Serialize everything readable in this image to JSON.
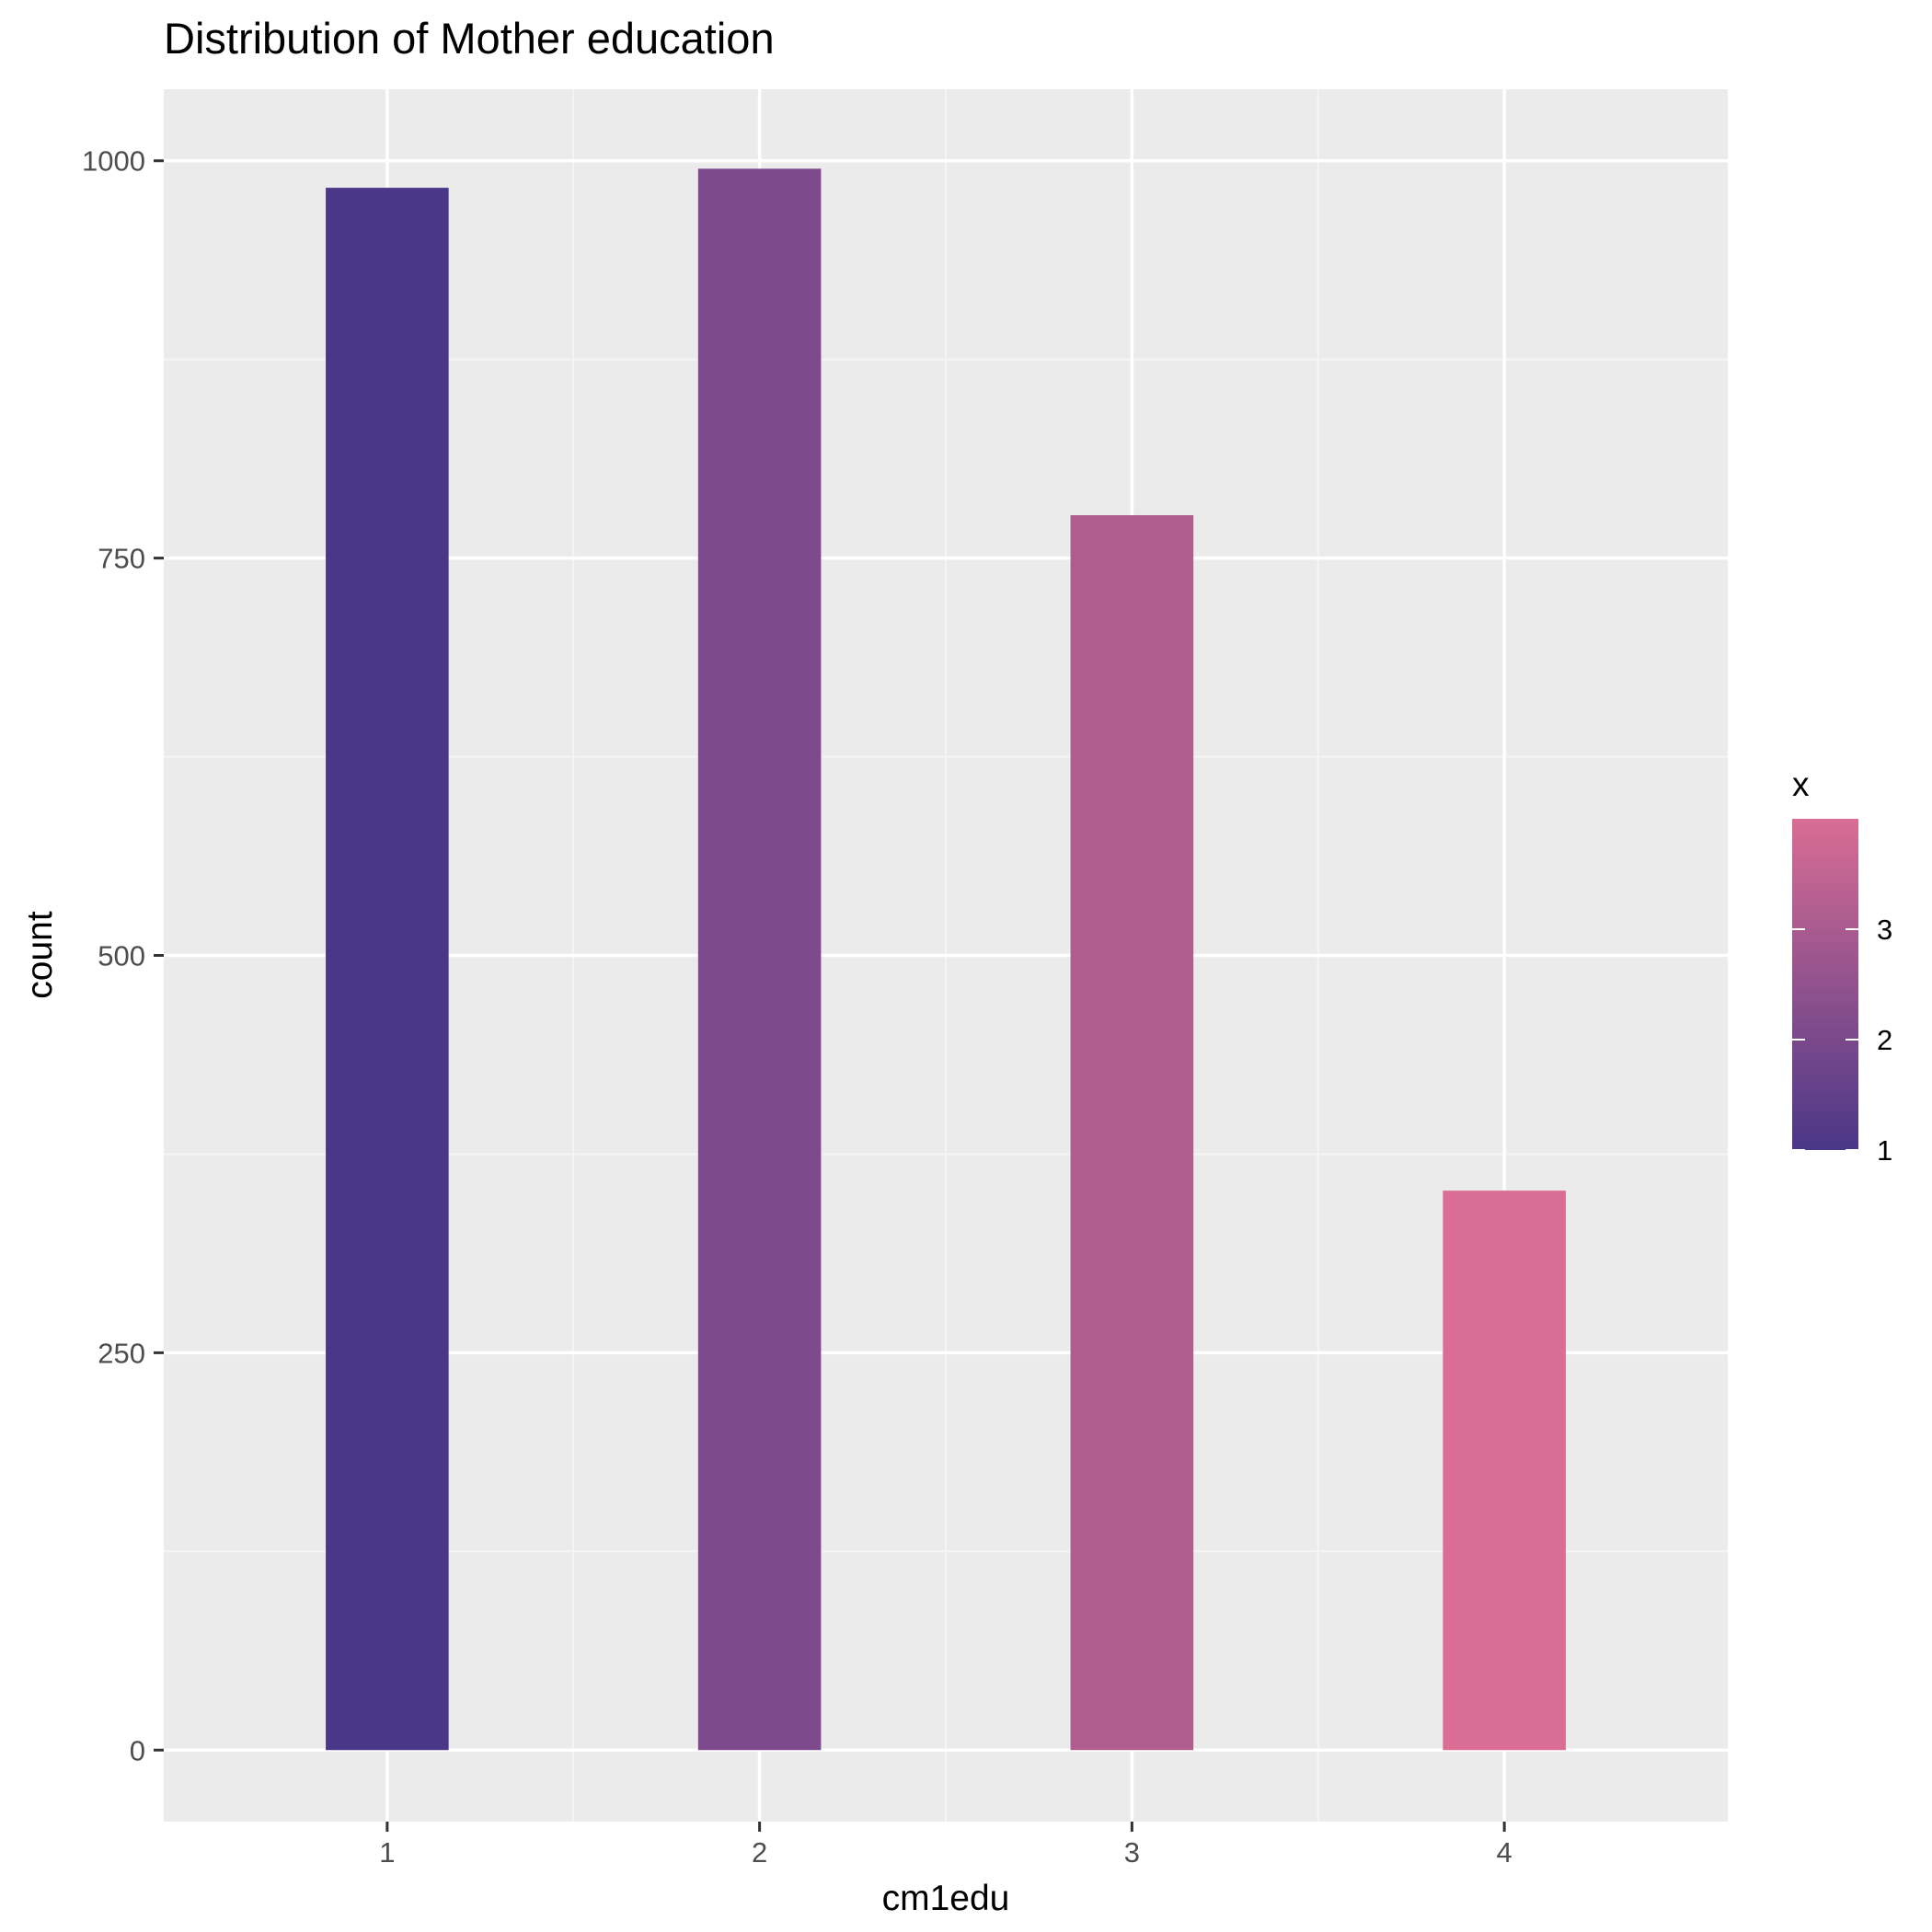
{
  "chart_data": {
    "type": "bar",
    "title": "Distribution of Mother education",
    "xlabel": "cm1edu",
    "ylabel": "count",
    "categories": [
      "1",
      "2",
      "3",
      "4"
    ],
    "values": [
      983,
      995,
      777,
      352
    ],
    "ylim": [
      -45,
      1045
    ],
    "yticks": [
      0,
      250,
      500,
      750,
      1000
    ],
    "ytick_labels": [
      "0",
      "250",
      "500",
      "750",
      "1000"
    ],
    "grid": true,
    "legend": {
      "title": "x",
      "type": "colorbar",
      "range": [
        1,
        4
      ],
      "ticks": [
        1,
        2,
        3
      ],
      "tick_labels": [
        "1",
        "2",
        "3"
      ],
      "colors": [
        "#4a3787",
        "#d96d94"
      ]
    },
    "colors": {
      "panel_background": "#ebebeb",
      "grid_major": "#ffffff",
      "grid_minor": "#f5f5f5",
      "bars": [
        "#4a3787",
        "#7d4a8e",
        "#b05c8e",
        "#d96d94"
      ]
    }
  }
}
